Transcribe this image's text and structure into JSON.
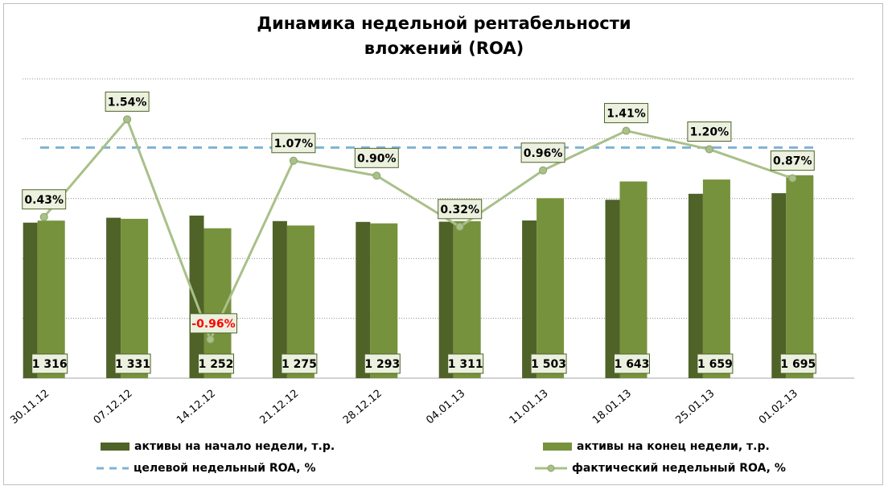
{
  "chart_data": {
    "type": "bar",
    "title_line1": "Динамика недельной рентабельности",
    "title_line2": "вложений (ROA)",
    "categories": [
      "30.11.12",
      "07.12.12",
      "14.12.12",
      "21.12.12",
      "28.12.12",
      "04.01.13",
      "11.01.13",
      "18.01.13",
      "25.01.13",
      "01.02.13"
    ],
    "series": [
      {
        "name": "активы на начало недели, т.р.",
        "type": "bar",
        "color": "#4f6228",
        "values": [
          1299,
          1340,
          1358,
          1312,
          1305,
          1307,
          1317,
          1490,
          1540,
          1545
        ]
      },
      {
        "name": "активы на конец недели, т.р.",
        "type": "bar",
        "color": "#76923c",
        "values": [
          1316,
          1331,
          1252,
          1275,
          1293,
          1311,
          1503,
          1643,
          1659,
          1695
        ],
        "labels": [
          "1 316",
          "1 331",
          "1 252",
          "1 275",
          "1 293",
          "1 311",
          "1 503",
          "1 643",
          "1 659",
          "1 695"
        ]
      },
      {
        "name": "целевой недельный ROA, %",
        "type": "line-dashed",
        "color": "#7fb3d5",
        "values": [
          1.22,
          1.22,
          1.22,
          1.22,
          1.22,
          1.22,
          1.22,
          1.22,
          1.22,
          1.22
        ]
      },
      {
        "name": "фактический недельный ROA, %",
        "type": "line",
        "color": "#a9c089",
        "values": [
          0.43,
          1.54,
          -0.96,
          1.07,
          0.9,
          0.32,
          0.96,
          1.41,
          1.2,
          0.87
        ],
        "labels": [
          "0.43%",
          "1.54%",
          "-0.96%",
          "1.07%",
          "0.90%",
          "0.32%",
          "0.96%",
          "1.41%",
          "1.20%",
          "0.87%"
        ],
        "negative_label_color": "#ff0000"
      }
    ],
    "ylim_assets": [
      0,
      2500
    ],
    "ylim_roa_percent": [
      -1.4,
      2.0
    ],
    "grid": true,
    "legend_position": "bottom"
  }
}
